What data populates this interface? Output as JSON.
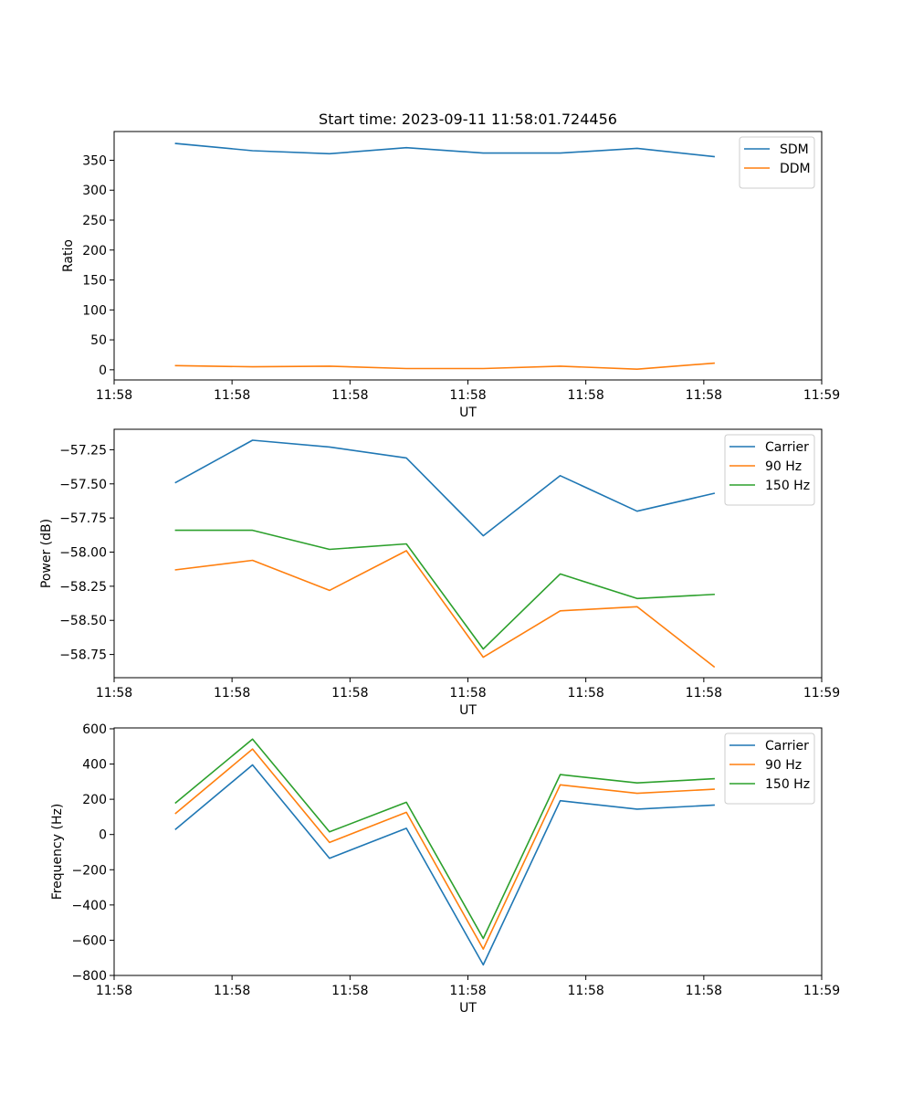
{
  "figure": {
    "title": "Start time: 2023-09-11 11:58:01.724456"
  },
  "colors": {
    "series1": "#1f77b4",
    "series2": "#ff7f0e",
    "series3": "#2ca02c",
    "axis": "#000000",
    "background": "#ffffff"
  },
  "chart_data": [
    {
      "type": "line",
      "title": "Start time: 2023-09-11 11:58:01.724456",
      "xlabel": "UT",
      "ylabel": "Ratio",
      "x_index": [
        1,
        2,
        3,
        4,
        5,
        6,
        7,
        8
      ],
      "xlim": [
        0.2,
        9.4
      ],
      "x_ticks": [
        0.2,
        1.733,
        3.267,
        4.8,
        6.333,
        7.867,
        9.4
      ],
      "x_tick_labels": [
        "11:58",
        "11:58",
        "11:58",
        "11:58",
        "11:58",
        "11:58",
        "11:59"
      ],
      "ylim": [
        -17,
        398
      ],
      "y_ticks": [
        0,
        50,
        100,
        150,
        200,
        250,
        300,
        350
      ],
      "y_tick_labels": [
        "0",
        "50",
        "100",
        "150",
        "200",
        "250",
        "300",
        "350"
      ],
      "legend_position": "top-right",
      "grid": false,
      "series": [
        {
          "name": "SDM",
          "color": "#1f77b4",
          "values": [
            378,
            366,
            361,
            371,
            362,
            362,
            370,
            356
          ]
        },
        {
          "name": "DDM",
          "color": "#ff7f0e",
          "values": [
            7,
            5,
            6,
            2,
            2,
            6,
            1,
            11
          ]
        }
      ]
    },
    {
      "type": "line",
      "xlabel": "UT",
      "ylabel": "Power (dB)",
      "x_index": [
        1,
        2,
        3,
        4,
        5,
        6,
        7,
        8
      ],
      "xlim": [
        0.2,
        9.4
      ],
      "x_ticks": [
        0.2,
        1.733,
        3.267,
        4.8,
        6.333,
        7.867,
        9.4
      ],
      "x_tick_labels": [
        "11:58",
        "11:58",
        "11:58",
        "11:58",
        "11:58",
        "11:58",
        "11:59"
      ],
      "ylim": [
        -58.92,
        -57.1
      ],
      "y_ticks": [
        -57.25,
        -57.5,
        -57.75,
        -58.0,
        -58.25,
        -58.5,
        -58.75
      ],
      "y_tick_labels": [
        "−57.25",
        "−57.50",
        "−57.75",
        "−58.00",
        "−58.25",
        "−58.50",
        "−58.75"
      ],
      "legend_position": "top-right",
      "grid": false,
      "series": [
        {
          "name": "Carrier",
          "color": "#1f77b4",
          "values": [
            -57.49,
            -57.18,
            -57.23,
            -57.31,
            -57.88,
            -57.44,
            -57.7,
            -57.57
          ]
        },
        {
          "name": "90 Hz",
          "color": "#ff7f0e",
          "values": [
            -58.13,
            -58.06,
            -58.28,
            -57.99,
            -58.77,
            -58.43,
            -58.4,
            -58.84
          ]
        },
        {
          "name": "150 Hz",
          "color": "#2ca02c",
          "values": [
            -57.84,
            -57.84,
            -57.98,
            -57.94,
            -58.71,
            -58.16,
            -58.34,
            -58.31
          ]
        }
      ]
    },
    {
      "type": "line",
      "xlabel": "UT",
      "ylabel": "Frequency (Hz)",
      "x_index": [
        1,
        2,
        3,
        4,
        5,
        6,
        7,
        8
      ],
      "xlim": [
        0.2,
        9.4
      ],
      "x_ticks": [
        0.2,
        1.733,
        3.267,
        4.8,
        6.333,
        7.867,
        9.4
      ],
      "x_tick_labels": [
        "11:58",
        "11:58",
        "11:58",
        "11:58",
        "11:58",
        "11:58",
        "11:59"
      ],
      "ylim": [
        -800,
        605
      ],
      "y_ticks": [
        600,
        400,
        200,
        0,
        -200,
        -400,
        -600,
        -800
      ],
      "y_tick_labels": [
        "600",
        "400",
        "200",
        "0",
        "−200",
        "−400",
        "−600",
        "−800"
      ],
      "legend_position": "top-right",
      "grid": false,
      "series": [
        {
          "name": "Carrier",
          "color": "#1f77b4",
          "values": [
            30,
            395,
            -135,
            35,
            -740,
            192,
            144,
            167
          ]
        },
        {
          "name": "90 Hz",
          "color": "#ff7f0e",
          "values": [
            120,
            485,
            -45,
            126,
            -650,
            282,
            234,
            257
          ]
        },
        {
          "name": "150 Hz",
          "color": "#2ca02c",
          "values": [
            180,
            542,
            15,
            183,
            -590,
            340,
            293,
            317
          ]
        }
      ]
    }
  ]
}
